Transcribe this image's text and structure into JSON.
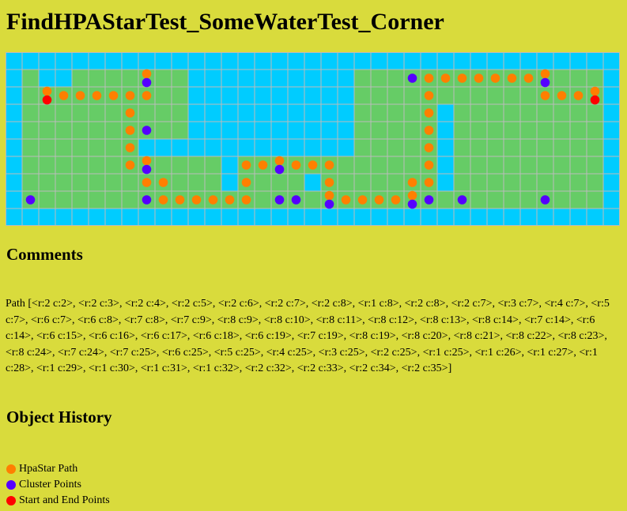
{
  "page": {
    "title": "FindHPAStarTest_SomeWaterTest_Corner"
  },
  "colors": {
    "water": "#00ccff",
    "land": "#66cc66",
    "grid_line": "#bbbbbb",
    "path": "#ff7f00",
    "cluster": "#5500ff",
    "endpoint": "#ff0000",
    "background": "#d9db3c"
  },
  "grid": {
    "rows": 10,
    "cols": 37,
    "land_cells": [
      [
        1,
        1,
        1
      ],
      [
        1,
        4,
        10
      ],
      [
        1,
        21,
        35
      ],
      [
        2,
        1,
        10
      ],
      [
        2,
        21,
        35
      ],
      [
        3,
        1,
        10
      ],
      [
        3,
        21,
        25
      ],
      [
        3,
        27,
        35
      ],
      [
        4,
        1,
        10
      ],
      [
        4,
        21,
        25
      ],
      [
        4,
        27,
        35
      ],
      [
        5,
        1,
        7
      ],
      [
        5,
        21,
        25
      ],
      [
        5,
        27,
        35
      ],
      [
        6,
        1,
        12
      ],
      [
        6,
        14,
        25
      ],
      [
        6,
        27,
        35
      ],
      [
        7,
        1,
        12
      ],
      [
        7,
        14,
        17
      ],
      [
        7,
        19,
        25
      ],
      [
        7,
        27,
        35
      ],
      [
        8,
        1,
        35
      ]
    ],
    "markers": {
      "path": [
        [
          1,
          8
        ],
        [
          2,
          3
        ],
        [
          2,
          4
        ],
        [
          2,
          5
        ],
        [
          2,
          6
        ],
        [
          2,
          7
        ],
        [
          2,
          8
        ],
        [
          3,
          7
        ],
        [
          4,
          7
        ],
        [
          5,
          7
        ],
        [
          6,
          7
        ],
        [
          6,
          8
        ],
        [
          7,
          8
        ],
        [
          7,
          9
        ],
        [
          8,
          9
        ],
        [
          8,
          10
        ],
        [
          8,
          11
        ],
        [
          8,
          12
        ],
        [
          8,
          13
        ],
        [
          8,
          14
        ],
        [
          7,
          14
        ],
        [
          6,
          14
        ],
        [
          6,
          15
        ],
        [
          6,
          16
        ],
        [
          6,
          17
        ],
        [
          6,
          18
        ],
        [
          6,
          19
        ],
        [
          7,
          19
        ],
        [
          8,
          19
        ],
        [
          8,
          20
        ],
        [
          8,
          21
        ],
        [
          8,
          22
        ],
        [
          8,
          23
        ],
        [
          8,
          24
        ],
        [
          7,
          24
        ],
        [
          7,
          25
        ],
        [
          6,
          25
        ],
        [
          5,
          25
        ],
        [
          4,
          25
        ],
        [
          3,
          25
        ],
        [
          2,
          25
        ],
        [
          1,
          25
        ],
        [
          1,
          26
        ],
        [
          1,
          27
        ],
        [
          1,
          28
        ],
        [
          1,
          29
        ],
        [
          1,
          30
        ],
        [
          1,
          31
        ],
        [
          1,
          32
        ],
        [
          2,
          32
        ],
        [
          2,
          33
        ],
        [
          2,
          34
        ]
      ],
      "cluster": [
        [
          1,
          8
        ],
        [
          4,
          8
        ],
        [
          6,
          8
        ],
        [
          8,
          8
        ],
        [
          8,
          1
        ],
        [
          6,
          16
        ],
        [
          8,
          16
        ],
        [
          8,
          17
        ],
        [
          8,
          19
        ],
        [
          8,
          24
        ],
        [
          1,
          24
        ],
        [
          8,
          25
        ],
        [
          8,
          27
        ],
        [
          1,
          32
        ],
        [
          8,
          32
        ]
      ],
      "endpoint": [
        [
          2,
          2
        ],
        [
          2,
          35
        ]
      ]
    }
  },
  "comments": {
    "heading": "Comments",
    "path_text": "Path [<r:2 c:2>, <r:2 c:3>, <r:2 c:4>, <r:2 c:5>, <r:2 c:6>, <r:2 c:7>, <r:2 c:8>, <r:1 c:8>, <r:2 c:8>, <r:2 c:7>, <r:3 c:7>, <r:4 c:7>, <r:5 c:7>, <r:6 c:7>, <r:6 c:8>, <r:7 c:8>, <r:7 c:9>, <r:8 c:9>, <r:8 c:10>, <r:8 c:11>, <r:8 c:12>, <r:8 c:13>, <r:8 c:14>, <r:7 c:14>, <r:6 c:14>, <r:6 c:15>, <r:6 c:16>, <r:6 c:17>, <r:6 c:18>, <r:6 c:19>, <r:7 c:19>, <r:8 c:19>, <r:8 c:20>, <r:8 c:21>, <r:8 c:22>, <r:8 c:23>, <r:8 c:24>, <r:7 c:24>, <r:7 c:25>, <r:6 c:25>, <r:5 c:25>, <r:4 c:25>, <r:3 c:25>, <r:2 c:25>, <r:1 c:25>, <r:1 c:26>, <r:1 c:27>, <r:1 c:28>, <r:1 c:29>, <r:1 c:30>, <r:1 c:31>, <r:1 c:32>, <r:2 c:32>, <r:2 c:33>, <r:2 c:34>, <r:2 c:35>]"
  },
  "history": {
    "heading": "Object History",
    "legend": [
      {
        "label": "HpaStar Path",
        "color": "#ff7f00"
      },
      {
        "label": "Cluster Points",
        "color": "#5500ff"
      },
      {
        "label": "Start and End Points",
        "color": "#ff0000"
      }
    ]
  }
}
